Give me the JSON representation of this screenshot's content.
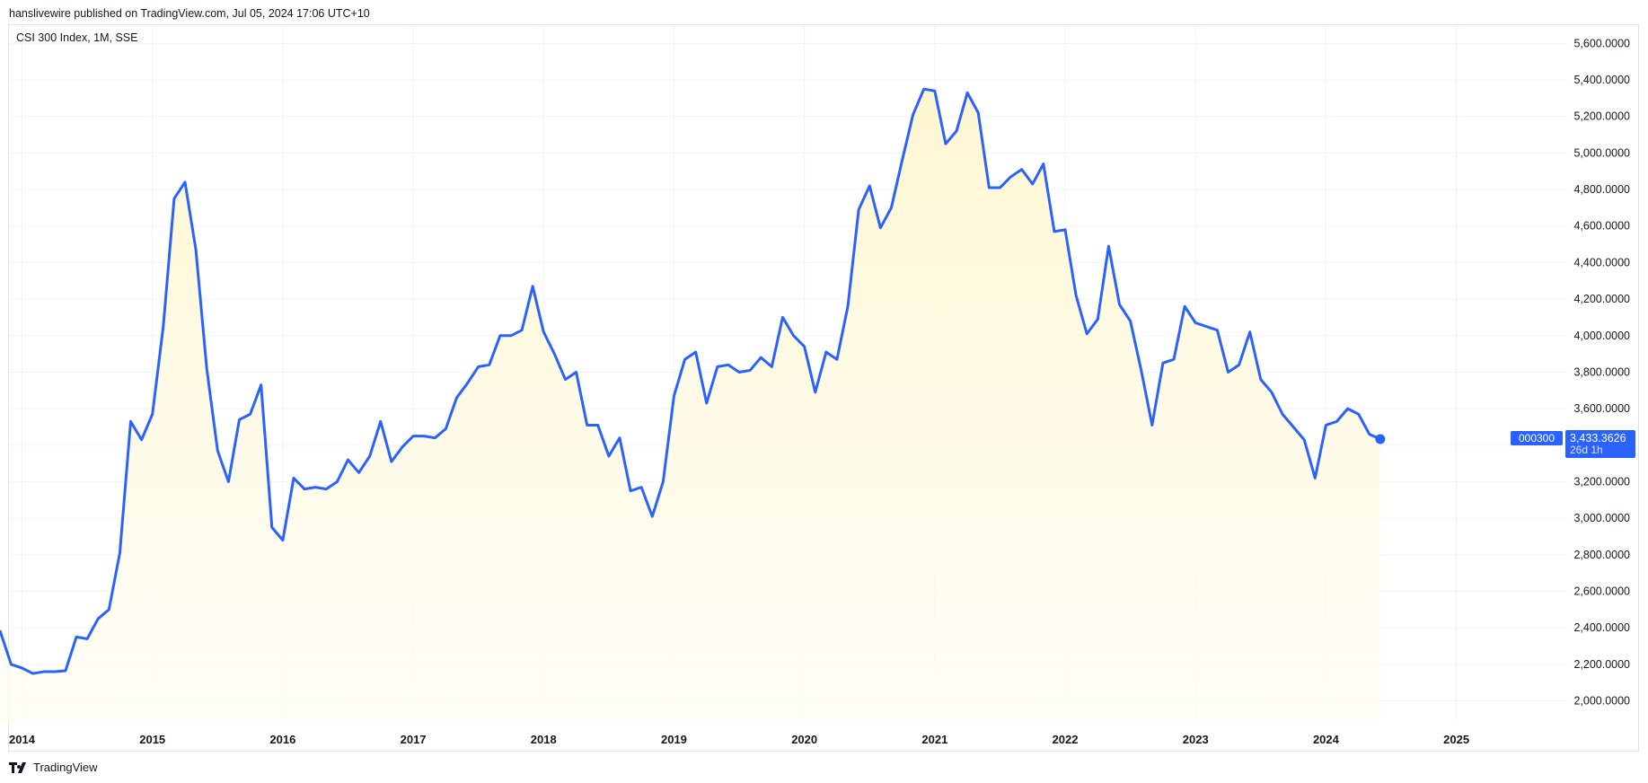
{
  "header": {
    "published_line": "hanslivewire published on TradingView.com, Jul 05, 2024 17:06 UTC+10"
  },
  "chart_header": {
    "symbol_title": "CSI 300 Index, 1M, SSE"
  },
  "footer": {
    "brand": "TradingView"
  },
  "colors": {
    "line": "#2962ff",
    "area_fill": "#fff9d6",
    "grid": "#f0f3fa",
    "badge_bg": "#2962ff",
    "badge_text": "#ffffff"
  },
  "last_value_badge": {
    "ticker": "000300",
    "price": "3,433.3626",
    "countdown": "26d 1h"
  },
  "chart_data": {
    "type": "area",
    "title": "CSI 300 Index, 1M, SSE",
    "xlabel": "",
    "ylabel": "",
    "ylim": [
      1880,
      5700
    ],
    "xlim": [
      2013.9,
      2025.85
    ],
    "grid": true,
    "y_ticks": [
      2000,
      2200,
      2400,
      2600,
      2800,
      3000,
      3200,
      3400,
      3600,
      3800,
      4000,
      4200,
      4400,
      4600,
      4800,
      5000,
      5200,
      5400,
      5600
    ],
    "y_tick_labels": [
      "2,000.0000",
      "2,200.0000",
      "2,400.0000",
      "2,600.0000",
      "2,800.0000",
      "3,000.0000",
      "3,200.0000",
      "3,400.0000",
      "3,600.0000",
      "3,800.0000",
      "4,000.0000",
      "4,200.0000",
      "4,400.0000",
      "4,600.0000",
      "4,800.0000",
      "5,000.0000",
      "5,200.0000",
      "5,400.0000",
      "5,600.0000"
    ],
    "x_ticks": [
      2014,
      2015,
      2016,
      2017,
      2018,
      2019,
      2020,
      2021,
      2022,
      2023,
      2024,
      2025
    ],
    "x_tick_labels": [
      "2014",
      "2015",
      "2016",
      "2017",
      "2018",
      "2019",
      "2020",
      "2021",
      "2022",
      "2023",
      "2024",
      "2025"
    ],
    "start": "2013-11",
    "frequency": "monthly",
    "series": [
      {
        "values": [
          2380,
          2200,
          2180,
          2150,
          2160,
          2160,
          2165,
          2350,
          2340,
          2450,
          2500,
          2810,
          3530,
          3430,
          3570,
          4050,
          4750,
          4840,
          4470,
          3820,
          3370,
          3200,
          3540,
          3570,
          3730,
          2950,
          2880,
          3220,
          3160,
          3170,
          3160,
          3200,
          3320,
          3250,
          3340,
          3530,
          3310,
          3390,
          3450,
          3450,
          3440,
          3490,
          3660,
          3740,
          3830,
          3840,
          4000,
          4000,
          4030,
          4270,
          4020,
          3900,
          3760,
          3800,
          3510,
          3510,
          3340,
          3440,
          3150,
          3170,
          3010,
          3200,
          3670,
          3870,
          3910,
          3630,
          3830,
          3840,
          3800,
          3810,
          3880,
          3830,
          4100,
          4000,
          3940,
          3690,
          3910,
          3870,
          4160,
          4690,
          4820,
          4590,
          4700,
          4960,
          5210,
          5350,
          5340,
          5050,
          5120,
          5330,
          5220,
          4810,
          4810,
          4870,
          4910,
          4830,
          4940,
          4570,
          4580,
          4220,
          4010,
          4090,
          4490,
          4170,
          4080,
          3810,
          3510,
          3850,
          3870,
          4160,
          4070,
          4050,
          4030,
          3800,
          3840,
          4020,
          3760,
          3690,
          3570,
          3500,
          3430,
          3220,
          3510,
          3530,
          3600,
          3570,
          3460,
          3433.36
        ]
      }
    ],
    "last_value": 3433.3626
  }
}
